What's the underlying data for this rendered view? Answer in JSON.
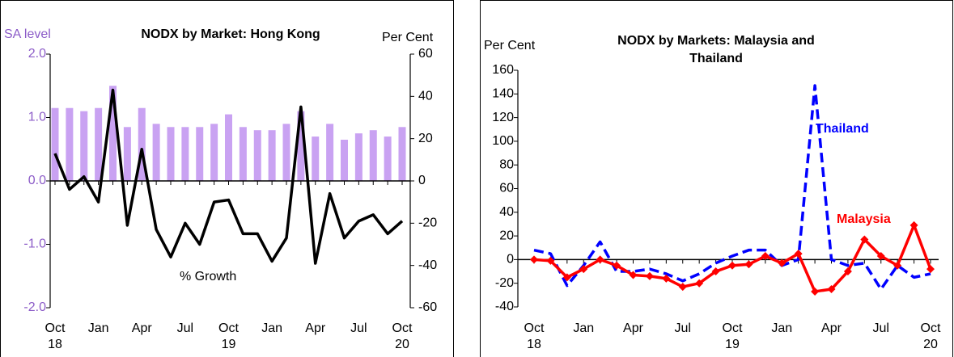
{
  "chart_data": [
    {
      "type": "combo",
      "title": "NODX by Market: Hong Kong",
      "y_label": "SA level",
      "y2_label": "Per Cent",
      "annotation": "% Growth",
      "categories": [
        "Oct 18",
        null,
        null,
        "Jan",
        null,
        null,
        "Apr",
        null,
        null,
        "Jul",
        null,
        null,
        "Oct 19",
        null,
        null,
        "Jan",
        null,
        null,
        "Apr",
        null,
        null,
        "Jul",
        null,
        null,
        "Oct 20"
      ],
      "ylim": [
        -2,
        2
      ],
      "yticks": [
        {
          "value": 2,
          "label": "2.0"
        },
        {
          "value": 1,
          "label": "1.0"
        },
        {
          "value": 0,
          "label": "0.0"
        },
        {
          "value": -1,
          "label": "-1.0"
        },
        {
          "value": -2,
          "label": "-2.0"
        }
      ],
      "y2lim": [
        -60,
        60
      ],
      "y2ticks": [
        60,
        40,
        20,
        0,
        -20,
        -40,
        -60
      ],
      "series": [
        {
          "type": "bar",
          "color": "#c9a2f2",
          "values": [
            1.15,
            1.15,
            1.1,
            1.15,
            1.5,
            0.85,
            1.15,
            0.9,
            0.85,
            0.85,
            0.85,
            0.9,
            1.05,
            0.85,
            0.8,
            0.8,
            0.9,
            1.1,
            0.7,
            0.9,
            0.65,
            0.75,
            0.8,
            0.7,
            0.85
          ]
        },
        {
          "type": "line",
          "axis": "y2",
          "color": "#000000",
          "values": [
            13,
            -4,
            2,
            -10,
            43,
            -21,
            15,
            -23,
            -36,
            -20,
            -30,
            -10,
            -9,
            -25,
            -25,
            -38,
            -27,
            35,
            -39,
            -6,
            -27,
            -19,
            -16,
            -25,
            -19
          ]
        }
      ]
    },
    {
      "type": "line",
      "title": "NODX by Markets: Malaysia and Thailand",
      "y_label": "Per Cent",
      "categories": [
        "Oct 18",
        null,
        null,
        "Jan",
        null,
        null,
        "Apr",
        null,
        null,
        "Jul",
        null,
        null,
        "Oct 19",
        null,
        null,
        "Jan",
        null,
        null,
        "Apr",
        null,
        null,
        "Jul",
        null,
        null,
        "Oct 20"
      ],
      "ylim": [
        -40,
        160
      ],
      "yticks": [
        160,
        140,
        120,
        100,
        80,
        60,
        40,
        20,
        0,
        -20,
        -40
      ],
      "series": [
        {
          "name": "Thailand",
          "color": "#0000ff",
          "dashed": true,
          "values": [
            8,
            5,
            -22,
            -5,
            15,
            -10,
            -10,
            -8,
            -12,
            -18,
            -12,
            -3,
            3,
            8,
            8,
            -5,
            0,
            147,
            0,
            -5,
            -3,
            -25,
            -5,
            -15,
            -12
          ]
        },
        {
          "name": "Malaysia",
          "color": "#ff0000",
          "markers": true,
          "values": [
            0,
            -1,
            -15,
            -8,
            0,
            -5,
            -13,
            -14,
            -16,
            -23,
            -20,
            -10,
            -5,
            -4,
            3,
            -3,
            5,
            -27,
            -25,
            -10,
            17,
            3,
            -5,
            29,
            -8
          ]
        }
      ]
    }
  ]
}
